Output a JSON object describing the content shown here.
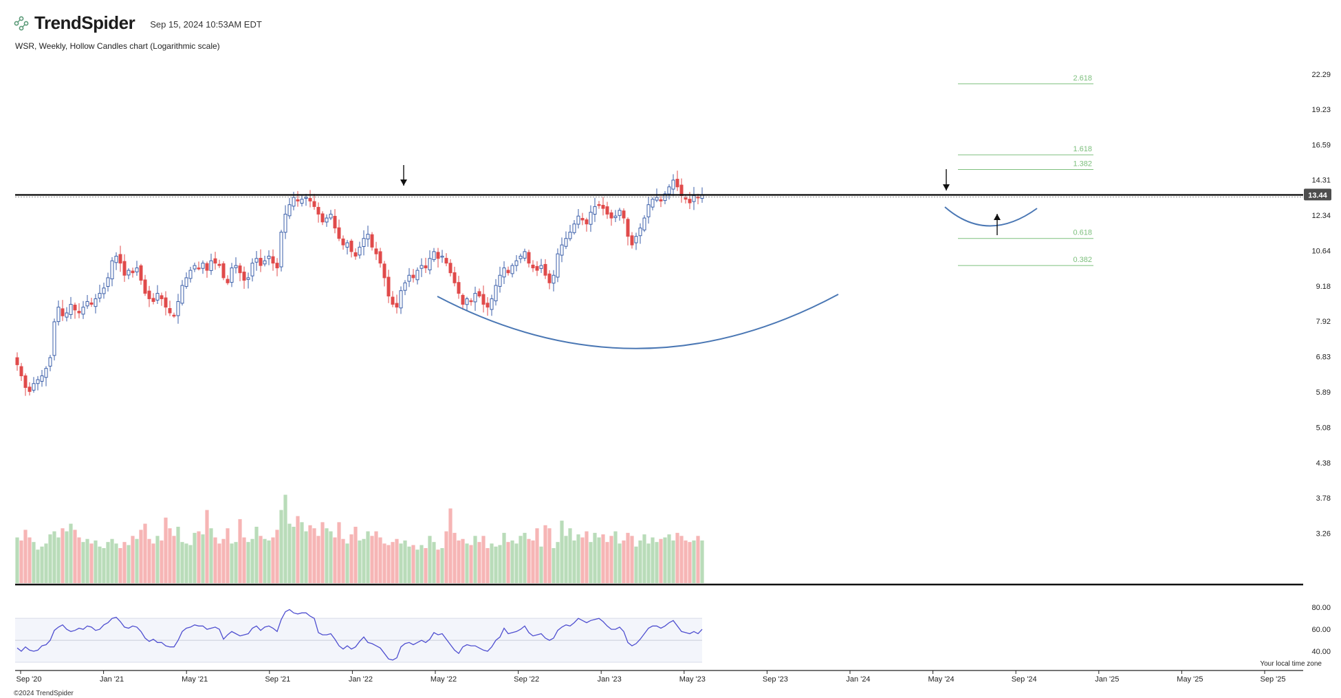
{
  "header": {
    "brand": "TrendSpider",
    "timestamp": "Sep 15, 2024 10:53AM EDT",
    "subtitle": "WSR, Weekly, Hollow Candles chart (Logarithmic scale)"
  },
  "footer": {
    "copyright": "©2024 TrendSpider",
    "timezone_note": "Your local time zone"
  },
  "colors": {
    "up": "#3a5ea8",
    "down": "#e04a4a",
    "vol_up": "#b9dcb9",
    "vol_down": "#f6b5b5",
    "rsi_line": "#4e4ed0",
    "fib": "#7cbf7c",
    "pattern": "#4a77b4",
    "resistance": "#111111",
    "price_tag_bg": "#4d4d4d"
  },
  "chart_data": {
    "type": "candlestick",
    "ticker": "WSR",
    "interval": "Weekly",
    "y_scale": "log",
    "ylim": [
      2.95,
      23.8
    ],
    "price_ticks": [
      "22.29",
      "19.23",
      "16.59",
      "14.31",
      "12.34",
      "10.64",
      "9.18",
      "7.92",
      "6.83",
      "5.89",
      "5.08",
      "4.38",
      "3.78",
      "3.26"
    ],
    "x_ticks": [
      "Sep '20",
      "Jan '21",
      "May '21",
      "Sep '21",
      "Jan '22",
      "May '22",
      "Sep '22",
      "Jan '23",
      "May '23",
      "Sep '23",
      "Jan '24",
      "May '24",
      "Sep '24",
      "Jan '25",
      "May '25",
      "Sep '25"
    ],
    "current_price": "13.44",
    "resistance_level": 13.44,
    "fib_levels": [
      {
        "label": "2.618",
        "value": 21.4
      },
      {
        "label": "1.618",
        "value": 15.9
      },
      {
        "label": "1.382",
        "value": 14.95
      },
      {
        "label": "0.618",
        "value": 11.2
      },
      {
        "label": "0.382",
        "value": 10.0
      }
    ],
    "weekly_close": [
      6.6,
      6.3,
      6.0,
      5.9,
      6.1,
      6.2,
      6.3,
      6.5,
      6.8,
      7.9,
      8.4,
      8.1,
      8.2,
      8.5,
      8.3,
      8.2,
      8.4,
      8.6,
      8.5,
      8.7,
      8.9,
      9.1,
      9.5,
      10.2,
      10.4,
      10.1,
      9.6,
      9.8,
      9.7,
      9.9,
      9.4,
      8.9,
      8.7,
      8.6,
      8.9,
      8.7,
      8.4,
      8.2,
      8.1,
      8.6,
      9.2,
      9.5,
      9.8,
      10.0,
      9.9,
      10.1,
      9.8,
      10.2,
      10.1,
      10.0,
      9.5,
      9.3,
      9.9,
      10.0,
      9.7,
      9.4,
      9.5,
      10.1,
      10.3,
      10.0,
      10.2,
      10.4,
      10.1,
      9.9,
      11.5,
      12.4,
      12.9,
      13.3,
      13.1,
      13.2,
      13.3,
      13.1,
      12.8,
      12.4,
      12.0,
      12.2,
      12.4,
      11.7,
      11.2,
      10.9,
      11.0,
      10.6,
      10.4,
      10.8,
      11.2,
      11.4,
      10.8,
      10.5,
      10.1,
      9.5,
      8.8,
      8.5,
      8.4,
      9.0,
      9.3,
      9.6,
      9.5,
      9.8,
      10.0,
      9.9,
      10.3,
      10.6,
      10.3,
      10.4,
      10.1,
      9.7,
      9.3,
      8.9,
      8.5,
      8.7,
      8.6,
      8.9,
      8.8,
      8.5,
      8.4,
      8.7,
      9.2,
      9.6,
      9.9,
      9.7,
      10.0,
      10.2,
      10.4,
      10.6,
      10.1,
      9.9,
      9.8,
      10.0,
      9.6,
      9.3,
      9.6,
      10.5,
      10.9,
      11.2,
      11.5,
      11.9,
      12.3,
      12.1,
      11.9,
      12.5,
      12.8,
      12.9,
      12.7,
      12.4,
      12.2,
      12.3,
      12.6,
      12.2,
      11.3,
      10.9,
      11.3,
      11.7,
      12.2,
      12.9,
      13.2,
      13.3,
      13.1,
      13.5,
      13.9,
      14.3,
      13.9,
      13.4,
      13.2,
      13.0,
      13.4,
      13.3,
      13.44
    ],
    "weekly_volume": [
      30,
      28,
      35,
      30,
      27,
      22,
      24,
      26,
      32,
      34,
      30,
      36,
      34,
      39,
      35,
      30,
      27,
      29,
      26,
      28,
      24,
      23,
      27,
      29,
      26,
      23,
      27,
      25,
      31,
      29,
      35,
      39,
      29,
      26,
      31,
      28,
      43,
      36,
      31,
      37,
      27,
      26,
      25,
      33,
      34,
      32,
      48,
      36,
      30,
      26,
      29,
      36,
      26,
      27,
      42,
      30,
      27,
      29,
      37,
      31,
      29,
      28,
      30,
      35,
      48,
      58,
      39,
      37,
      44,
      40,
      34,
      38,
      36,
      31,
      40,
      36,
      34,
      30,
      40,
      29,
      26,
      32,
      37,
      28,
      29,
      34,
      31,
      34,
      30,
      26,
      25,
      27,
      29,
      26,
      28,
      24,
      25,
      22,
      25,
      23,
      31,
      27,
      22,
      23,
      34,
      49,
      33,
      28,
      29,
      26,
      25,
      31,
      27,
      31,
      23,
      26,
      24,
      25,
      33,
      27,
      28,
      26,
      31,
      33,
      29,
      28,
      36,
      24,
      38,
      36,
      23,
      27,
      41,
      31,
      36,
      28,
      32,
      30,
      34,
      27,
      33,
      30,
      32,
      27,
      31,
      34,
      26,
      28,
      33,
      31,
      24,
      28,
      32,
      26,
      30,
      27,
      29,
      30,
      32,
      28,
      33,
      31,
      28,
      27,
      28,
      31,
      28
    ],
    "volume_ylim": [
      0,
      60
    ],
    "rsi": {
      "ticks": [
        "80.00",
        "60.00",
        "40.00"
      ],
      "ylim": [
        30,
        82
      ],
      "values": [
        43,
        40,
        44,
        41,
        40,
        41,
        45,
        46,
        50,
        59,
        62,
        64,
        60,
        58,
        59,
        61,
        60,
        63,
        62,
        59,
        60,
        64,
        66,
        70,
        71,
        67,
        62,
        61,
        63,
        62,
        58,
        52,
        49,
        51,
        48,
        48,
        45,
        44,
        44,
        50,
        58,
        61,
        62,
        64,
        63,
        63,
        60,
        61,
        62,
        60,
        51,
        55,
        58,
        56,
        54,
        55,
        56,
        61,
        63,
        59,
        62,
        63,
        61,
        58,
        69,
        76,
        78,
        75,
        74,
        75,
        75,
        72,
        70,
        57,
        55,
        55,
        56,
        51,
        45,
        42,
        45,
        42,
        44,
        49,
        53,
        48,
        47,
        45,
        43,
        38,
        33,
        32,
        34,
        44,
        47,
        48,
        46,
        48,
        50,
        48,
        51,
        57,
        55,
        56,
        51,
        46,
        41,
        38,
        44,
        46,
        45,
        45,
        43,
        41,
        40,
        44,
        50,
        53,
        61,
        56,
        57,
        58,
        60,
        63,
        57,
        54,
        55,
        56,
        52,
        50,
        52,
        59,
        62,
        64,
        63,
        66,
        70,
        68,
        66,
        68,
        69,
        70,
        67,
        63,
        60,
        60,
        62,
        58,
        48,
        45,
        47,
        51,
        56,
        61,
        63,
        63,
        61,
        63,
        66,
        68,
        63,
        58,
        57,
        56,
        58,
        56,
        60
      ]
    },
    "annotations": [
      "down-arrow-mar-2022",
      "down-arrow-jul-2024",
      "up-arrow-sep-2024",
      "cup-base-arc",
      "handle-arc"
    ]
  }
}
